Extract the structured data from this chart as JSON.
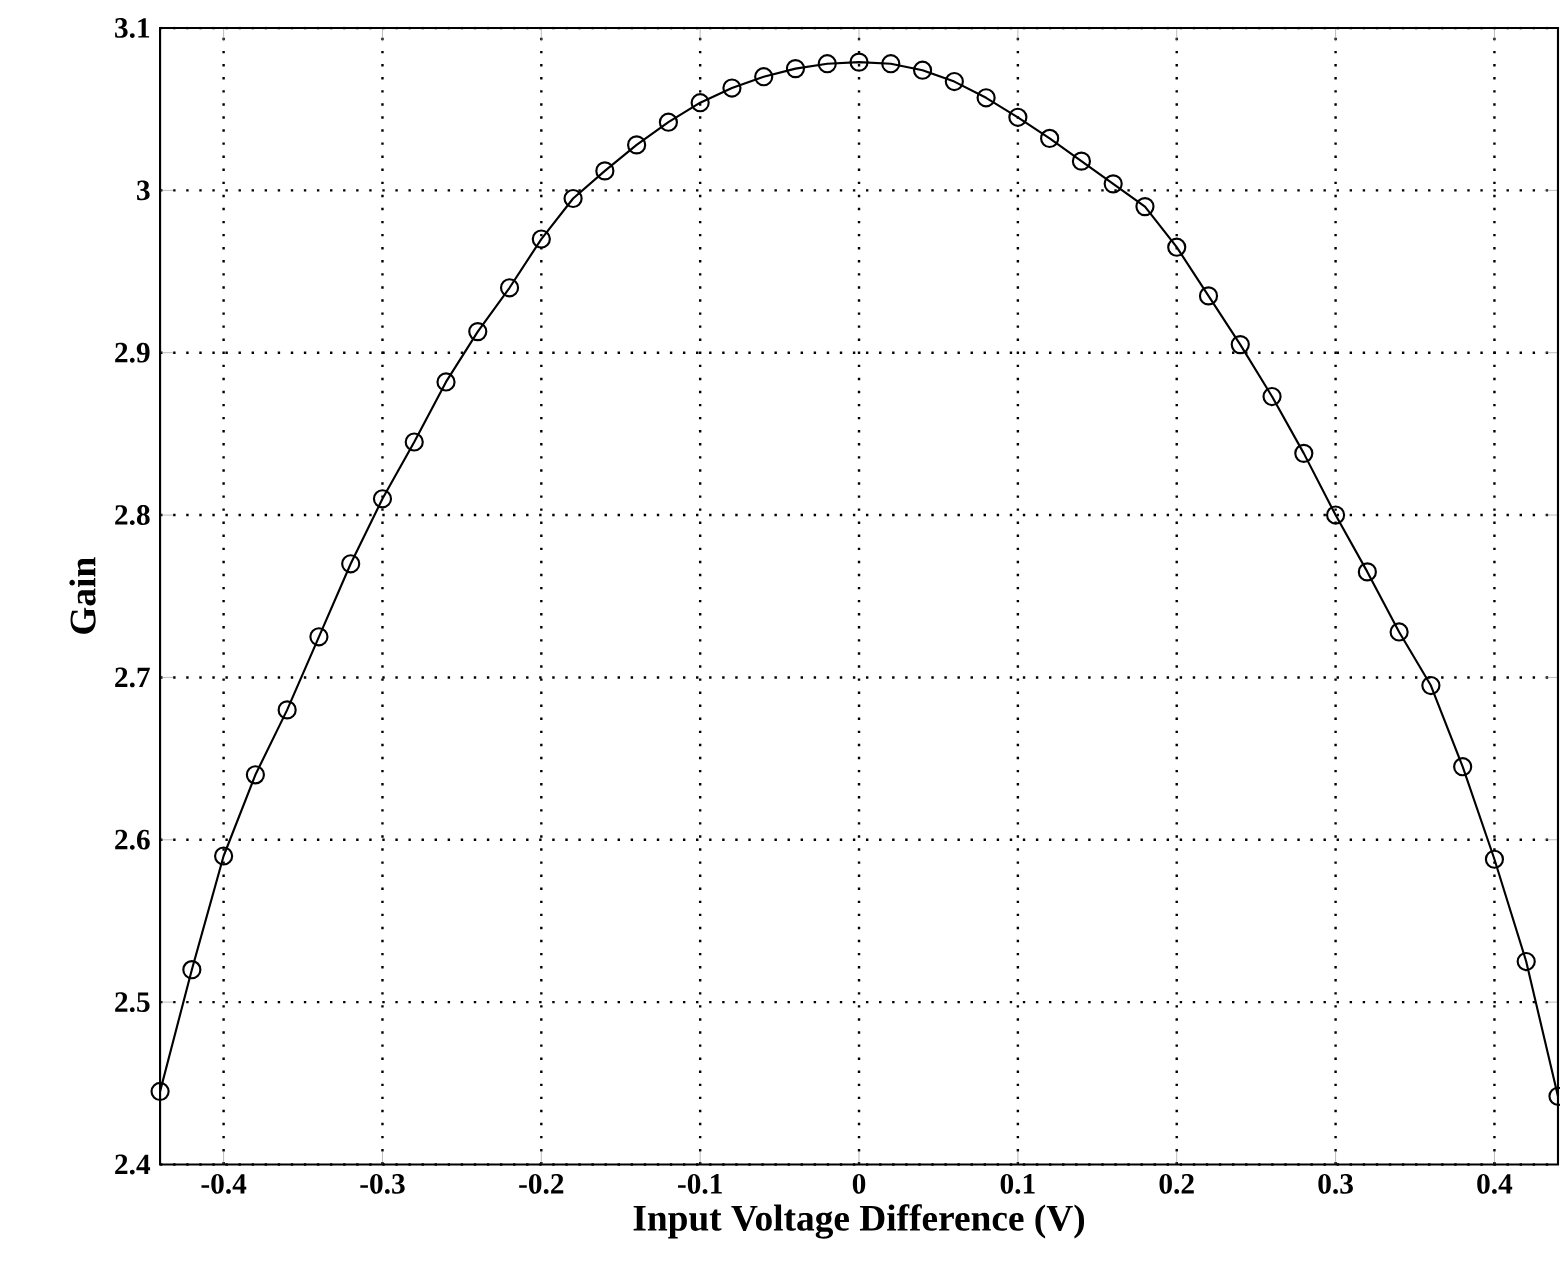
{
  "chart_data": {
    "type": "line",
    "xlabel": "Input Voltage Difference (V)",
    "ylabel": "Gain",
    "marker": "circle",
    "grid": true,
    "xlim": [
      -0.44,
      0.44
    ],
    "xticks": [
      -0.4,
      -0.3,
      -0.2,
      -0.1,
      0,
      0.1,
      0.2,
      0.3,
      0.4
    ],
    "ylim": [
      2.4,
      3.1
    ],
    "yticks": [
      2.4,
      2.5,
      2.6,
      2.7,
      2.8,
      2.9,
      3,
      3.1
    ],
    "x": [
      -0.44,
      -0.42,
      -0.4,
      -0.38,
      -0.36,
      -0.34,
      -0.32,
      -0.3,
      -0.28,
      -0.26,
      -0.24,
      -0.22,
      -0.2,
      -0.18,
      -0.16,
      -0.14,
      -0.12,
      -0.1,
      -0.08,
      -0.06,
      -0.04,
      -0.02,
      0,
      0.02,
      0.04,
      0.06,
      0.08,
      0.1,
      0.12,
      0.14,
      0.16,
      0.18,
      0.2,
      0.22,
      0.24,
      0.26,
      0.28,
      0.3,
      0.32,
      0.34,
      0.36,
      0.38,
      0.4,
      0.42,
      0.44
    ],
    "series": [
      {
        "color": "#000000",
        "values": [
          2.445,
          2.52,
          2.59,
          2.64,
          2.68,
          2.725,
          2.77,
          2.81,
          2.845,
          2.882,
          2.913,
          2.94,
          2.97,
          2.995,
          3.012,
          3.028,
          3.042,
          3.054,
          3.063,
          3.07,
          3.075,
          3.078,
          3.079,
          3.078,
          3.074,
          3.067,
          3.057,
          3.045,
          3.032,
          3.018,
          3.004,
          2.99,
          2.965,
          2.935,
          2.905,
          2.873,
          2.838,
          2.8,
          2.765,
          2.728,
          2.695,
          2.645,
          2.588,
          2.525,
          2.442
        ]
      }
    ]
  }
}
